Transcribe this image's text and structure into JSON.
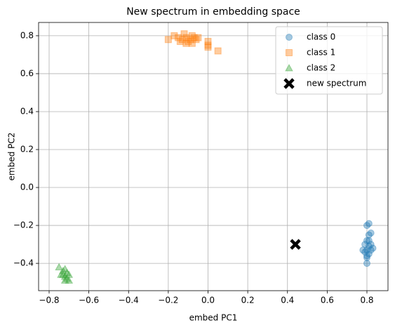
{
  "chart_data": {
    "type": "scatter",
    "title": "New spectrum in embedding space",
    "x_label": "embed PC1",
    "y_label": "embed PC2",
    "xlim": [
      -0.853,
      0.906
    ],
    "ylim": [
      -0.544,
      0.87
    ],
    "xticks": [
      {
        "value": -0.8,
        "label": "−0.8"
      },
      {
        "value": -0.6,
        "label": "−0.6"
      },
      {
        "value": -0.4,
        "label": "−0.4"
      },
      {
        "value": -0.2,
        "label": "−0.2"
      },
      {
        "value": 0,
        "label": "0.0"
      },
      {
        "value": 0.2,
        "label": "0.2"
      },
      {
        "value": 0.4,
        "label": "0.4"
      },
      {
        "value": 0.6,
        "label": "0.6"
      },
      {
        "value": 0.8,
        "label": "0.8"
      }
    ],
    "yticks": [
      {
        "value": -0.4,
        "label": "−0.4"
      },
      {
        "value": -0.2,
        "label": "−0.2"
      },
      {
        "value": 0,
        "label": "0.0"
      },
      {
        "value": 0.2,
        "label": "0.2"
      },
      {
        "value": 0.4,
        "label": "0.4"
      },
      {
        "value": 0.6,
        "label": "0.6"
      },
      {
        "value": 0.8,
        "label": "0.8"
      }
    ],
    "grid": true,
    "legend": "upper right",
    "series": [
      {
        "name": "class 0",
        "color": "#1f77b4",
        "marker": "circle",
        "alpha": 0.4,
        "x": [
          0.8,
          0.81,
          0.82,
          0.81,
          0.8,
          0.79,
          0.81,
          0.82,
          0.8,
          0.79,
          0.81,
          0.8,
          0.8,
          0.82,
          0.83,
          0.78,
          0.81,
          0.8
        ],
        "values": [
          -0.2,
          -0.19,
          -0.24,
          -0.25,
          -0.28,
          -0.3,
          -0.31,
          -0.33,
          -0.33,
          -0.34,
          -0.35,
          -0.37,
          -0.4,
          -0.3,
          -0.32,
          -0.33,
          -0.28,
          -0.36
        ]
      },
      {
        "name": "class 1",
        "color": "#ff7f0e",
        "marker": "square",
        "alpha": 0.4,
        "x": [
          -0.2,
          -0.17,
          -0.15,
          -0.13,
          -0.12,
          -0.11,
          -0.1,
          -0.09,
          -0.08,
          -0.07,
          -0.06,
          -0.11,
          -0.14,
          -0.08,
          0.0,
          0.0,
          0.0,
          0.05,
          -0.05
        ],
        "values": [
          0.78,
          0.8,
          0.79,
          0.78,
          0.81,
          0.79,
          0.77,
          0.78,
          0.8,
          0.79,
          0.78,
          0.76,
          0.77,
          0.76,
          0.77,
          0.75,
          0.74,
          0.72,
          0.79
        ]
      },
      {
        "name": "class 2",
        "color": "#2ca02c",
        "marker": "triangle",
        "alpha": 0.4,
        "x": [
          -0.75,
          -0.73,
          -0.72,
          -0.73,
          -0.72,
          -0.71,
          -0.71,
          -0.7,
          -0.72,
          -0.74,
          -0.7
        ],
        "values": [
          -0.42,
          -0.44,
          -0.43,
          -0.46,
          -0.47,
          -0.45,
          -0.48,
          -0.49,
          -0.49,
          -0.46,
          -0.46
        ]
      },
      {
        "name": "new spectrum",
        "color": "#000000",
        "marker": "x",
        "alpha": 1,
        "x": [
          0.44
        ],
        "values": [
          -0.3
        ]
      }
    ]
  }
}
